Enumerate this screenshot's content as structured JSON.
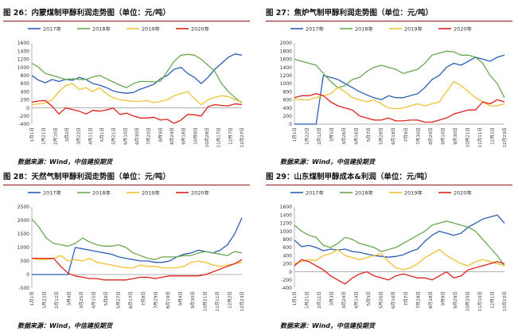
{
  "panels": [
    {
      "id": "p26",
      "title": "图 26：内蒙煤制甲醇利润走势图（单位：元/吨）",
      "source": "数据来源：Wind，中信建投期货",
      "chart_data": {
        "type": "line",
        "legend_position": "top",
        "ylim": [
          -400,
          1600
        ],
        "yticks": [
          -400,
          -200,
          0,
          200,
          400,
          600,
          800,
          1000,
          1200,
          1400,
          1600
        ],
        "xticks": [
          "1月1日",
          "1月21日",
          "2月10日",
          "3月2日",
          "3月22日",
          "4月11日",
          "5月1日",
          "5月21日",
          "6月10日",
          "6月30日",
          "7月20日",
          "8月9日",
          "8月29日",
          "9月18日",
          "10月8日",
          "10月28日",
          "11月17日",
          "12月7日",
          "12月27日"
        ],
        "series": [
          {
            "name": "2017年",
            "color": "#2b5fb4",
            "values": [
              800,
              680,
              620,
              700,
              650,
              700,
              680,
              750,
              700,
              600,
              560,
              500,
              420,
              380,
              360,
              380,
              460,
              520,
              580,
              720,
              800,
              950,
              1000,
              850,
              750,
              600,
              750,
              950,
              1100,
              1250,
              1330,
              1300
            ]
          },
          {
            "name": "2018年",
            "color": "#6aa84f",
            "values": [
              1100,
              1000,
              850,
              800,
              750,
              700,
              720,
              700,
              700,
              760,
              800,
              720,
              640,
              560,
              500,
              600,
              650,
              650,
              640,
              660,
              900,
              1150,
              1300,
              1320,
              1300,
              1200,
              1050,
              900,
              600,
              400,
              250,
              120
            ]
          },
          {
            "name": "2019年",
            "color": "#f1c232",
            "values": [
              80,
              100,
              120,
              200,
              400,
              550,
              600,
              450,
              500,
              400,
              500,
              350,
              250,
              200,
              180,
              160,
              160,
              180,
              130,
              160,
              200,
              300,
              350,
              400,
              230,
              80,
              200,
              260,
              300,
              280,
              200,
              150
            ]
          },
          {
            "name": "2020年",
            "color": "#e0201b",
            "values": [
              140,
              170,
              180,
              40,
              -150,
              0,
              -40,
              -80,
              -150,
              -60,
              -80,
              -50,
              0,
              -160,
              -130,
              -200,
              -250,
              -250,
              -230,
              -300,
              -280,
              -380,
              -300,
              -160,
              -170,
              -200,
              30,
              80,
              60,
              50,
              100,
              80
            ]
          }
        ]
      }
    },
    {
      "id": "p27",
      "title": "图 27：焦炉气制甲醇利润走势图（单位：元/吨）",
      "source": "数据来源：Wind，中信建投期货",
      "chart_data": {
        "type": "line",
        "legend_position": "top",
        "ylim": [
          0,
          2000
        ],
        "yticks": [
          0,
          200,
          400,
          600,
          800,
          1000,
          1200,
          1400,
          1600,
          1800,
          2000
        ],
        "xticks": [
          "1月1日",
          "1月22日",
          "2月12日",
          "3月5日",
          "3月26日",
          "4月16日",
          "5月7日",
          "5月28日",
          "6月18日",
          "7月9日",
          "7月30日",
          "8月20日",
          "9月10日",
          "9月30日",
          "10月21日",
          "11月11日",
          "12月2日",
          "12月23日"
        ],
        "series": [
          {
            "name": "2017年",
            "color": "#2b5fb4",
            "values": [
              0,
              0,
              0,
              0,
              1200,
              1150,
              1100,
              1000,
              900,
              800,
              720,
              650,
              600,
              700,
              650,
              650,
              700,
              750,
              900,
              1100,
              1200,
              1400,
              1500,
              1450,
              1550,
              1650,
              1600,
              1550,
              1650,
              1700
            ]
          },
          {
            "name": "2018年",
            "color": "#6aa84f",
            "values": [
              1600,
              1550,
              1500,
              1450,
              1250,
              1050,
              900,
              950,
              1100,
              1150,
              1300,
              1400,
              1450,
              1400,
              1350,
              1250,
              1300,
              1350,
              1500,
              1700,
              1750,
              1800,
              1780,
              1700,
              1700,
              1650,
              1500,
              1200,
              1000,
              650
            ]
          },
          {
            "name": "2019年",
            "color": "#f1c232",
            "values": [
              620,
              600,
              600,
              650,
              700,
              750,
              900,
              800,
              650,
              600,
              550,
              600,
              500,
              400,
              380,
              400,
              450,
              500,
              450,
              500,
              550,
              800,
              1050,
              950,
              800,
              650,
              550,
              450,
              450,
              500
            ]
          },
          {
            "name": "2020年",
            "color": "#e0201b",
            "values": [
              650,
              700,
              700,
              750,
              700,
              550,
              450,
              400,
              350,
              200,
              150,
              100,
              100,
              150,
              80,
              80,
              100,
              100,
              50,
              50,
              100,
              150,
              250,
              300,
              350,
              350,
              550,
              500,
              600,
              550
            ]
          }
        ]
      }
    },
    {
      "id": "p28",
      "title": "图 28：天然气制甲醇利润走势图（单位：元/吨）",
      "source": "数据来源：Wind，中信建投期货",
      "chart_data": {
        "type": "line",
        "legend_position": "top",
        "ylim": [
          -500,
          2500
        ],
        "yticks": [
          -500,
          0,
          500,
          1000,
          1500,
          2000,
          2500
        ],
        "xticks": [
          "1月1日",
          "1月22日",
          "2月12日",
          "3月4日",
          "3月25日",
          "4月15日",
          "5月6日",
          "5月27日",
          "6月17日",
          "7月8日",
          "7月29日",
          "8月19日",
          "9月9日",
          "9月30日",
          "10月21日",
          "11月11日",
          "12月2日",
          "12月23日"
        ],
        "series": [
          {
            "name": "2017年",
            "color": "#2b5fb4",
            "values": [
              0,
              0,
              0,
              0,
              0,
              0,
              1000,
              950,
              900,
              850,
              800,
              750,
              650,
              600,
              550,
              500,
              500,
              450,
              450,
              500,
              650,
              750,
              800,
              900,
              850,
              800,
              900,
              1100,
              1500,
              2100
            ]
          },
          {
            "name": "2018年",
            "color": "#6aa84f",
            "values": [
              2050,
              1750,
              1350,
              1150,
              1100,
              1050,
              1150,
              1350,
              1200,
              1100,
              1050,
              1050,
              1100,
              1000,
              800,
              700,
              600,
              550,
              650,
              650,
              650,
              700,
              700,
              800,
              850,
              800,
              750,
              700,
              850,
              800
            ]
          },
          {
            "name": "2019年",
            "color": "#f1c232",
            "values": [
              600,
              550,
              550,
              600,
              700,
              500,
              550,
              500,
              600,
              450,
              400,
              350,
              300,
              250,
              250,
              350,
              300,
              300,
              250,
              250,
              250,
              300,
              450,
              500,
              450,
              350,
              300,
              350,
              400,
              450
            ]
          },
          {
            "name": "2020年",
            "color": "#e0201b",
            "values": [
              600,
              600,
              600,
              600,
              300,
              50,
              -50,
              -100,
              -150,
              -150,
              -200,
              -200,
              -200,
              -200,
              -150,
              -100,
              -100,
              -150,
              -100,
              -50,
              -50,
              -50,
              -50,
              -50,
              0,
              100,
              200,
              300,
              400,
              550
            ]
          }
        ]
      }
    },
    {
      "id": "p29",
      "title": "图 29：山东煤制甲醇成本&利润（单位：元/吨）",
      "source": "数据来源：Wind，中信建投期货",
      "chart_data": {
        "type": "line",
        "legend_position": "top",
        "ylim": [
          -400,
          1600
        ],
        "yticks": [
          -400,
          -200,
          0,
          200,
          400,
          600,
          800,
          1000,
          1200,
          1400,
          1600
        ],
        "xticks": [
          "1月1日",
          "1月21日",
          "2月11日",
          "3月3日",
          "3月24日",
          "4月14日",
          "5月5日",
          "5月26日",
          "6月16日",
          "7月7日",
          "7月28日",
          "8月18日",
          "9月8日",
          "9月29日",
          "10月20日",
          "11月10日",
          "12月1日",
          "12月22日"
        ],
        "series": [
          {
            "name": "2017年",
            "color": "#2b5fb4",
            "values": [
              780,
              620,
              650,
              600,
              520,
              560,
              540,
              560,
              500,
              480,
              440,
              400,
              380,
              360,
              380,
              420,
              500,
              560,
              750,
              900,
              1000,
              950,
              900,
              950,
              1100,
              1200,
              1300,
              1350,
              1400,
              1200
            ]
          },
          {
            "name": "2018年",
            "color": "#6aa84f",
            "values": [
              1150,
              1000,
              900,
              850,
              650,
              600,
              700,
              850,
              800,
              700,
              650,
              600,
              500,
              550,
              600,
              700,
              800,
              900,
              1000,
              1150,
              1200,
              1250,
              1200,
              1150,
              1100,
              1000,
              800,
              600,
              400,
              150
            ]
          },
          {
            "name": "2019年",
            "color": "#f1c232",
            "values": [
              200,
              250,
              300,
              280,
              400,
              450,
              550,
              400,
              350,
              300,
              350,
              400,
              450,
              250,
              100,
              50,
              100,
              200,
              350,
              450,
              550,
              400,
              300,
              200,
              150,
              250,
              300,
              250,
              200,
              150
            ]
          },
          {
            "name": "2020年",
            "color": "#e0201b",
            "values": [
              150,
              300,
              250,
              150,
              50,
              -100,
              -200,
              -300,
              -150,
              -50,
              0,
              -100,
              -150,
              -200,
              -100,
              -50,
              -100,
              -150,
              -150,
              -200,
              -100,
              0,
              -150,
              -100,
              50,
              100,
              150,
              200,
              250,
              200
            ]
          }
        ]
      }
    }
  ]
}
